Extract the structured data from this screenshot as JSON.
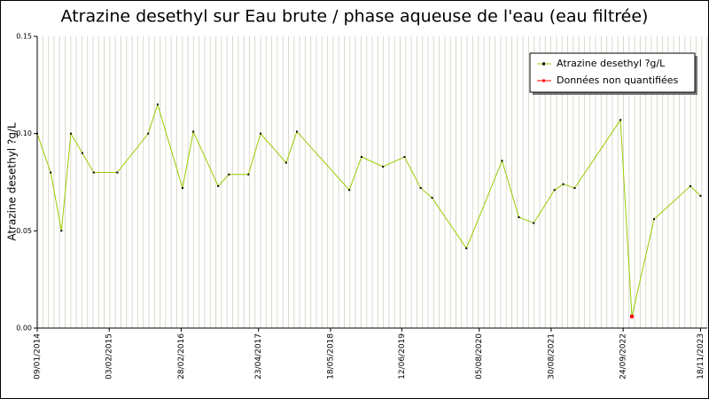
{
  "chart_data": {
    "type": "line",
    "title": "Atrazine desethyl sur Eau brute / phase aqueuse de l'eau (eau filtrée)",
    "y_label": "Atrazine desethyl ?g/L",
    "xlim": [
      2014.02,
      2023.98
    ],
    "ylim": [
      0,
      0.15
    ],
    "xticks": [
      {
        "value": 2014.02,
        "label": "09/01/2014"
      },
      {
        "value": 2015.09,
        "label": "03/02/2015"
      },
      {
        "value": 2016.16,
        "label": "28/02/2016"
      },
      {
        "value": 2017.31,
        "label": "23/04/2017"
      },
      {
        "value": 2018.38,
        "label": "18/05/2018"
      },
      {
        "value": 2019.44,
        "label": "12/06/2019"
      },
      {
        "value": 2020.59,
        "label": "05/08/2020"
      },
      {
        "value": 2021.66,
        "label": "30/08/2021"
      },
      {
        "value": 2022.73,
        "label": "24/09/2022"
      },
      {
        "value": 2023.88,
        "label": "18/11/2023"
      }
    ],
    "yticks": [
      {
        "value": 0,
        "label": "0.00"
      },
      {
        "value": 0.05,
        "label": "0.05"
      },
      {
        "value": 0.1,
        "label": "0.10"
      },
      {
        "value": 0.15,
        "label": "0.15"
      }
    ],
    "legend": "top-right",
    "series": [
      {
        "name": "Atrazine desethyl ?g/L",
        "color": "#99cc00",
        "marker_color": "#000000",
        "x": [
          2014.02,
          2014.22,
          2014.38,
          2014.52,
          2014.69,
          2014.86,
          2015.21,
          2015.67,
          2015.81,
          2016.18,
          2016.34,
          2016.71,
          2016.87,
          2017.16,
          2017.34,
          2017.72,
          2017.88,
          2018.66,
          2018.84,
          2019.16,
          2019.48,
          2019.72,
          2019.89,
          2020.4,
          2020.93,
          2021.18,
          2021.4,
          2021.71,
          2021.84,
          2022.01,
          2022.69,
          2022.86,
          2023.19,
          2023.73,
          2023.88
        ],
        "values": [
          0.1,
          0.08,
          0.05,
          0.1,
          0.09,
          0.08,
          0.08,
          0.1,
          0.115,
          0.072,
          0.101,
          0.073,
          0.079,
          0.079,
          0.1,
          0.085,
          0.101,
          0.071,
          0.088,
          0.083,
          0.088,
          0.072,
          0.067,
          0.041,
          0.086,
          0.057,
          0.054,
          0.071,
          0.074,
          0.072,
          0.107,
          0.006,
          0.056,
          0.073,
          0.068
        ]
      },
      {
        "name": "Données non quantifiées",
        "color": "#ff0000",
        "x": [
          2022.86
        ],
        "values": [
          0.006
        ]
      }
    ]
  }
}
